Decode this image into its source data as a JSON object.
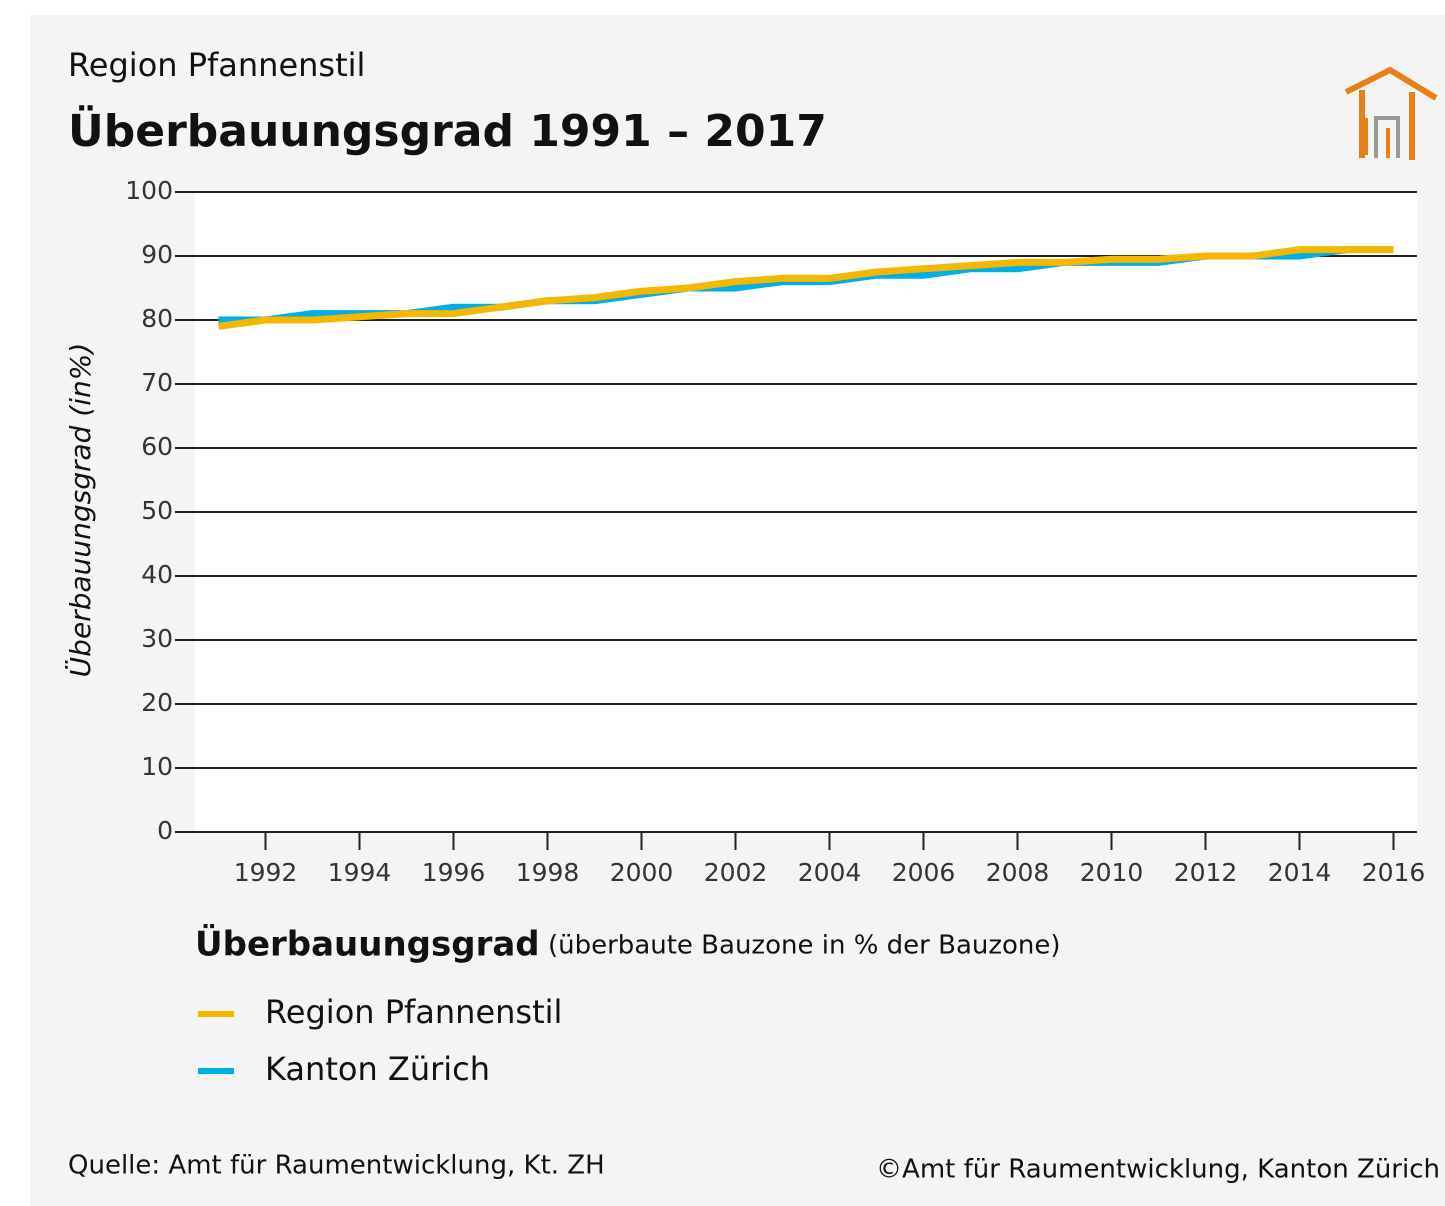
{
  "chart_data": {
    "type": "line",
    "subtitle": "Region Pfannenstil",
    "title": "Überbauungsgrad 1991 – 2017",
    "y_label": "Überbauungsgrad (in%)",
    "legend_title": "Überbauungsgrad",
    "legend_note": "(überbaute Bauzone in % der Bauzone)",
    "source": "Quelle: Amt für Raumentwicklung, Kt. ZH",
    "copyright": "©Amt für Raumentwicklung, Kanton Zürich",
    "x": [
      1991,
      1992,
      1993,
      1994,
      1995,
      1996,
      1997,
      1998,
      1999,
      2000,
      2001,
      2002,
      2003,
      2004,
      2005,
      2006,
      2007,
      2008,
      2009,
      2010,
      2011,
      2012,
      2013,
      2014,
      2015,
      2016
    ],
    "series": [
      {
        "name": "Region Pfannenstil",
        "color": "#f5b800",
        "values": [
          79,
          80,
          80,
          80.5,
          81,
          81,
          82,
          83,
          83.5,
          84.5,
          85,
          86,
          86.5,
          86.5,
          87.5,
          88,
          88.5,
          89,
          89,
          89.5,
          89.5,
          90,
          90,
          91,
          91,
          91
        ]
      },
      {
        "name": "Kanton Zürich",
        "color": "#00aee8",
        "values": [
          80,
          80,
          81,
          81,
          81,
          82,
          82,
          83,
          83,
          84,
          85,
          85,
          86,
          86,
          87,
          87,
          88,
          88,
          89,
          89,
          89,
          90,
          90,
          90,
          91,
          91
        ]
      }
    ],
    "xlim": [
      1990.5,
      2016.5
    ],
    "xticks": [
      1992,
      1994,
      1996,
      1998,
      2000,
      2002,
      2004,
      2006,
      2008,
      2010,
      2012,
      2014,
      2016
    ],
    "ylim": [
      0,
      100
    ],
    "yticks": [
      0,
      10,
      20,
      30,
      40,
      50,
      60,
      70,
      80,
      90,
      100
    ],
    "grid": true
  }
}
